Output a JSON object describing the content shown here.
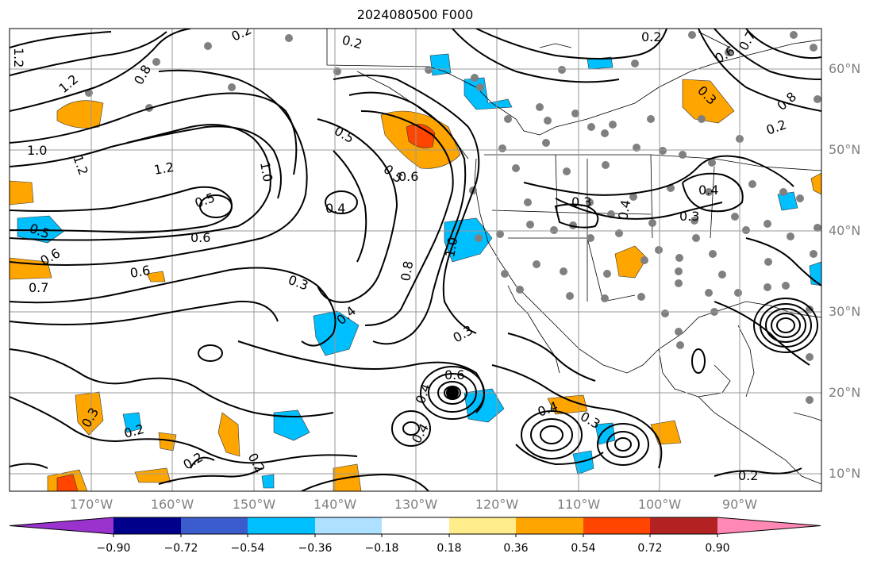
{
  "title": "2024080500 F000",
  "lat_labels": [
    "60°N",
    "50°N",
    "40°N",
    "30°N",
    "20°N",
    "10°N"
  ],
  "lon_labels": [
    "170°W",
    "160°W",
    "150°W",
    "140°W",
    "130°W",
    "120°W",
    "110°W",
    "100°W",
    "90°W"
  ],
  "colorbar": {
    "ticks": [
      "−0.90",
      "−0.72",
      "−0.54",
      "−0.36",
      "−0.18",
      "0.18",
      "0.36",
      "0.54",
      "0.72",
      "0.90"
    ],
    "colors": [
      "#9a32cd",
      "#00008b",
      "#3a5ccc",
      "#00bfff",
      "#aee0ff",
      "#ffffff",
      "#ffec8b",
      "#ffa500",
      "#ff4500",
      "#b22222",
      "#ff89b4"
    ]
  },
  "contour_labels": [
    "0.2",
    "0.2",
    "0.2",
    "1.2",
    "1.2",
    "0.8",
    "1.0",
    "1.2",
    "1.2",
    "0.5",
    "0.5",
    "0.6",
    "0.6",
    "0.4",
    "0.5",
    "0.7",
    "0.6",
    "1.0",
    "0.5",
    "0.6",
    "0.3",
    "0.8",
    "0.4",
    "1.0",
    "0.3",
    "0.6",
    "0.4",
    "0.4",
    "0.3",
    "0.4",
    "0.3",
    "0.3",
    "0.4",
    "0.3",
    "0.2",
    "0.6",
    "0.7",
    "0.8",
    "0.4",
    "0.2",
    "0.3",
    "0.2",
    "0.2",
    "0.2"
  ],
  "field_colors": {
    "orange": "#ffa500",
    "red": "#ff4500",
    "darkred": "#b22222",
    "blue": "#00bfff",
    "land": "#ffffff",
    "station": "#808080"
  }
}
